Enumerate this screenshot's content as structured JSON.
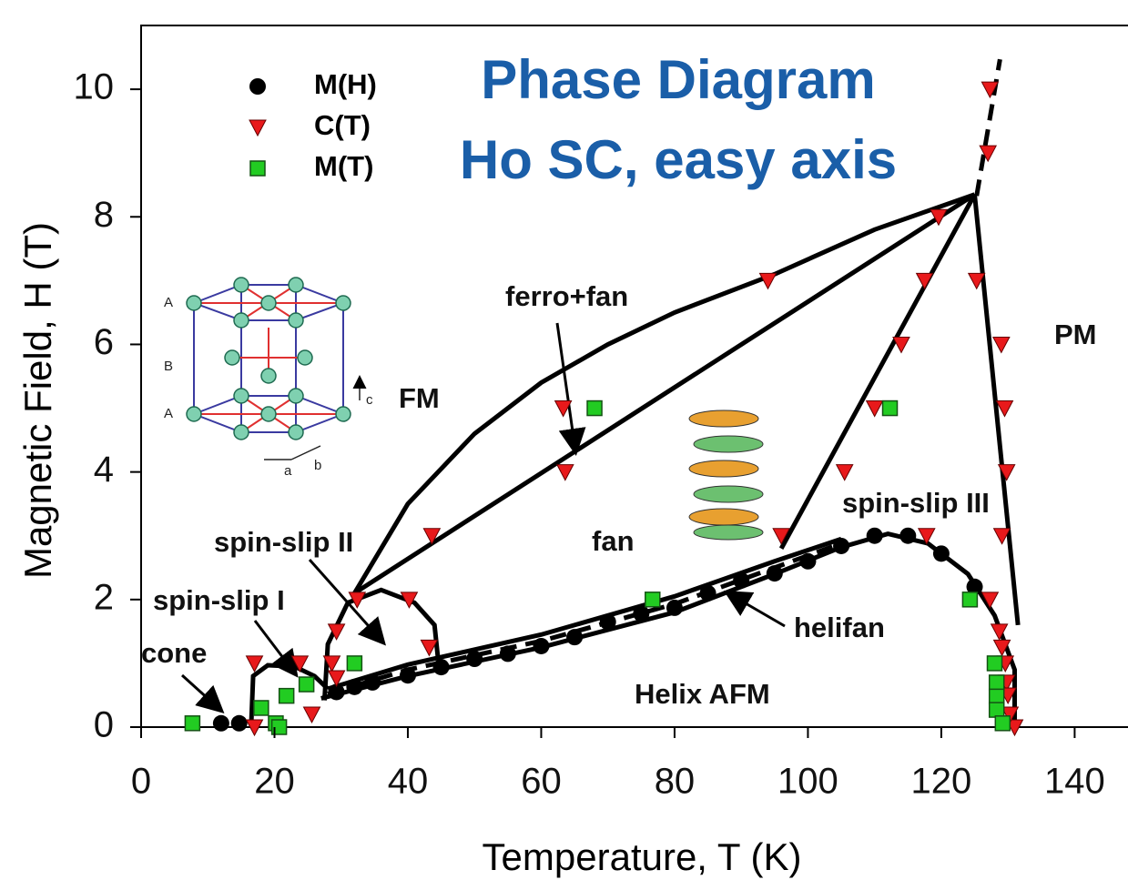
{
  "chart_data": {
    "type": "scatter",
    "title": "Phase Diagram",
    "subtitle": "Ho SC, easy axis",
    "x_label": "Temperature, T (K)",
    "y_label": "Magnetic Field, H (T)",
    "xlim": [
      0,
      148
    ],
    "ylim": [
      0,
      11
    ],
    "xticks": [
      0,
      20,
      40,
      60,
      80,
      100,
      120,
      140
    ],
    "yticks": [
      0,
      2,
      4,
      6,
      8,
      10
    ],
    "legend": "upper left",
    "series": [
      {
        "name": "M(H)",
        "color": "#000000",
        "marker": "circle",
        "x": [
          12,
          14.7,
          29.3,
          32,
          34.7,
          40,
          45,
          50,
          55,
          60,
          65,
          70,
          75,
          80,
          85,
          90,
          95,
          100,
          105,
          110,
          115,
          120,
          125
        ],
        "values": [
          0.06,
          0.06,
          0.55,
          0.63,
          0.7,
          0.81,
          0.94,
          1.07,
          1.15,
          1.27,
          1.41,
          1.65,
          1.78,
          1.87,
          2.1,
          2.3,
          2.41,
          2.6,
          2.84,
          3.0,
          3.0,
          2.72,
          2.2
        ]
      },
      {
        "name": "C(T)",
        "color": "#e8191b",
        "marker": "triangle-down",
        "x": [
          127.3,
          127,
          119.6,
          125.3,
          117.5,
          94,
          114,
          129,
          63.3,
          110,
          129.5,
          63.6,
          105.5,
          129.8,
          43.6,
          96,
          117.8,
          129.1,
          32.4,
          40.2,
          127.3,
          29.3,
          128.7,
          17,
          23.8,
          28.6,
          43.2,
          129.1,
          129.6,
          29.3,
          129.8,
          130,
          25.6,
          17,
          131,
          130.3
        ],
        "values": [
          10,
          9,
          8,
          7,
          7,
          7,
          6,
          6,
          5,
          5,
          5,
          4,
          4,
          4,
          3,
          3,
          3,
          3,
          2,
          2,
          2,
          1.5,
          1.5,
          1,
          1,
          1,
          1.25,
          1.25,
          1,
          0.77,
          0.7,
          0.5,
          0.2,
          0,
          0,
          0.2
        ]
      },
      {
        "name": "M(T)",
        "color": "#22cc22",
        "marker": "square",
        "x": [
          7.7,
          20.2,
          20.7,
          18,
          21.8,
          24.8,
          32,
          68,
          112.3,
          76.7,
          124.3,
          128,
          128.3,
          128.3,
          128.3,
          129.2
        ],
        "values": [
          0.06,
          0.06,
          0,
          0.3,
          0.49,
          0.67,
          1,
          5,
          5,
          2,
          2,
          1,
          0.7,
          0.48,
          0.27,
          0.06
        ]
      }
    ],
    "boundaries": [
      {
        "x": [
          32,
          40,
          50,
          60,
          70,
          80,
          95,
          110,
          125
        ],
        "y": [
          2.1,
          3.5,
          4.6,
          5.4,
          6.0,
          6.5,
          7.1,
          7.8,
          8.35
        ],
        "dashed": false
      },
      {
        "x": [
          32,
          125
        ],
        "y": [
          2.1,
          8.35
        ],
        "dashed": false
      },
      {
        "x": [
          96,
          125
        ],
        "y": [
          2.8,
          8.35
        ],
        "dashed": false
      },
      {
        "x": [
          125,
          131.5
        ],
        "y": [
          8.35,
          1.6
        ],
        "dashed": false
      },
      {
        "x": [
          125.3,
          128.8
        ],
        "y": [
          8.33,
          10.47
        ],
        "dashed": true
      },
      {
        "x": [
          27,
          40,
          60,
          80,
          95,
          105,
          112,
          118,
          124,
          128,
          131,
          131
        ],
        "y": [
          0.45,
          0.8,
          1.25,
          1.8,
          2.4,
          2.82,
          3.03,
          2.88,
          2.4,
          1.75,
          0.9,
          0.05
        ],
        "dashed": false
      },
      {
        "x": [
          28,
          40,
          60,
          80,
          95,
          105
        ],
        "y": [
          0.6,
          0.98,
          1.45,
          2.05,
          2.6,
          2.95
        ],
        "dashed": false
      },
      {
        "x": [
          28,
          40,
          60,
          80,
          95,
          105
        ],
        "y": [
          0.52,
          0.9,
          1.35,
          1.93,
          2.5,
          2.88
        ],
        "dashed": true
      },
      {
        "x": [
          27.5,
          28,
          31,
          36,
          41,
          44,
          44.5
        ],
        "y": [
          0.42,
          1.3,
          1.95,
          2.15,
          1.95,
          1.6,
          1.1
        ],
        "dashed": false
      },
      {
        "x": [
          16.5,
          16.8,
          19,
          23,
          26,
          28
        ],
        "y": [
          0,
          0.8,
          0.97,
          0.95,
          0.8,
          0.6
        ],
        "dashed": false
      }
    ],
    "annotations": [
      "ferro+fan",
      "FM",
      "PM",
      "fan",
      "spin-slip III",
      "spin-slip II",
      "spin-slip I",
      "cone",
      "helifan",
      "Helix AFM"
    ],
    "inset_labels": [
      "A",
      "B",
      "A",
      "c",
      "a",
      "b"
    ]
  }
}
